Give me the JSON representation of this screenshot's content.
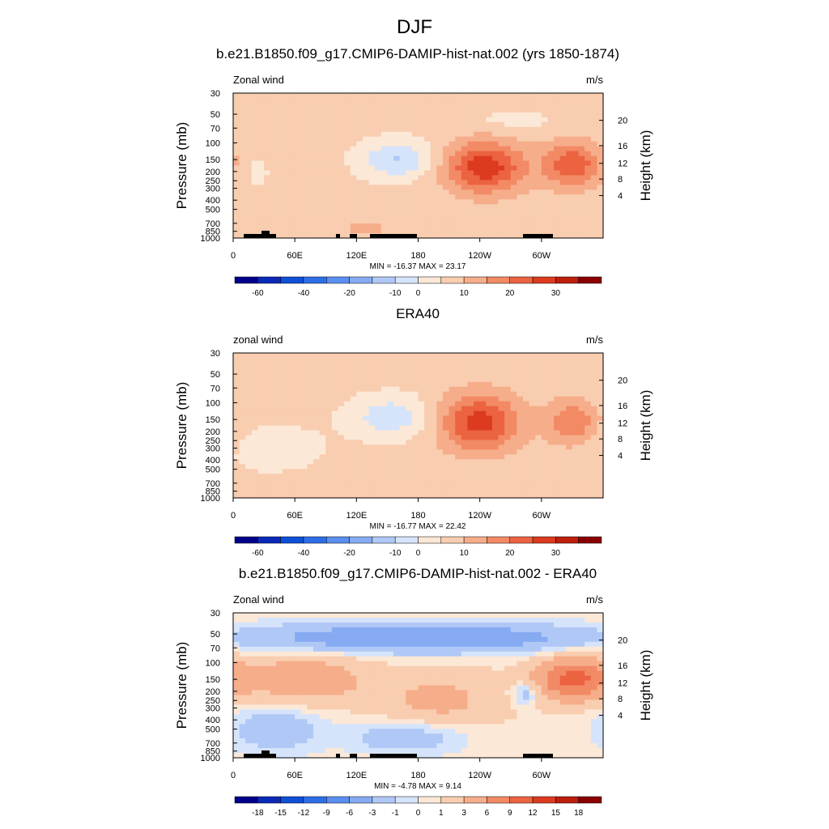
{
  "title": "DJF",
  "colors": {
    "neg12": [
      "#00008b",
      "#0a29b8",
      "#0f4fd8",
      "#2d6ee8",
      "#5a8fef",
      "#86abf2",
      "#b0c8f6",
      "#d6e4fb"
    ],
    "pos12": [
      "#fce8d6",
      "#f9cdb0",
      "#f6ad8a",
      "#f28a65",
      "#ec6341",
      "#dc3b1f",
      "#bc1f0c",
      "#8b0000"
    ]
  },
  "chart_data": [
    {
      "type": "heatmap",
      "panel_title": "b.e21.B1850.f09_g17.CMIP6-DAMIP-hist-nat.002 (yrs 1850-1874)",
      "left_string": "Zonal wind",
      "right_string": "m/s",
      "ylabel": "Pressure (mb)",
      "ylabel_right": "Height (km)",
      "xticks": [
        "0",
        "60E",
        "120E",
        "180",
        "120W",
        "60W"
      ],
      "yticks": [
        "30",
        "50",
        "70",
        "100",
        "150",
        "200",
        "250",
        "300",
        "400",
        "500",
        "700",
        "850",
        "1000"
      ],
      "yticks_right": [
        "20",
        "16",
        "12",
        "8",
        "4"
      ],
      "stats": "MIN = -16.37  MAX =  23.17",
      "colorbar_labels": [
        "-60",
        "-40",
        "-20",
        "-10",
        "0",
        "10",
        "20",
        "30"
      ],
      "fields": [
        {
          "lon": 160,
          "p": 150,
          "amp": -12,
          "wl": 25,
          "wp": 0.32
        },
        {
          "lon": 245,
          "p": 180,
          "amp": 22,
          "wl": 28,
          "wp": 0.45
        },
        {
          "lon": 330,
          "p": 170,
          "amp": 18,
          "wl": 20,
          "wp": 0.4
        },
        {
          "lon": 130,
          "p": 800,
          "amp": 4,
          "wl": 30,
          "wp": 0.25
        },
        {
          "lon": 20,
          "p": 200,
          "amp": -3,
          "wl": 12,
          "wp": 0.3
        },
        {
          "lon": 270,
          "p": 60,
          "amp": -3,
          "wl": 40,
          "wp": 0.2
        }
      ]
    },
    {
      "type": "heatmap",
      "panel_title": "ERA40",
      "left_string": "zonal wind",
      "right_string": "m/s",
      "ylabel": "Pressure (mb)",
      "ylabel_right": "Height (km)",
      "xticks": [
        "0",
        "60E",
        "120E",
        "180",
        "120W",
        "60W"
      ],
      "yticks": [
        "30",
        "50",
        "70",
        "100",
        "150",
        "200",
        "250",
        "300",
        "400",
        "500",
        "700",
        "850",
        "1000"
      ],
      "yticks_right": [
        "20",
        "16",
        "12",
        "8",
        "4"
      ],
      "stats": "MIN = -16.77  MAX =  22.42",
      "colorbar_labels": [
        "-60",
        "-40",
        "-20",
        "-10",
        "0",
        "10",
        "20",
        "30"
      ],
      "fields": [
        {
          "lon": 155,
          "p": 140,
          "amp": -10,
          "wl": 28,
          "wp": 0.35
        },
        {
          "lon": 240,
          "p": 160,
          "amp": 21,
          "wl": 28,
          "wp": 0.5
        },
        {
          "lon": 330,
          "p": 160,
          "amp": 13,
          "wl": 18,
          "wp": 0.4
        },
        {
          "lon": 40,
          "p": 300,
          "amp": -3,
          "wl": 40,
          "wp": 0.5
        },
        {
          "lon": 110,
          "p": 800,
          "amp": 3,
          "wl": 30,
          "wp": 0.2
        }
      ]
    },
    {
      "type": "heatmap",
      "panel_title": "b.e21.B1850.f09_g17.CMIP6-DAMIP-hist-nat.002 - ERA40",
      "left_string": "Zonal wind",
      "right_string": "m/s",
      "ylabel": "Pressure (mb)",
      "ylabel_right": "Height (km)",
      "xticks": [
        "0",
        "60E",
        "120E",
        "180",
        "120W",
        "60W"
      ],
      "yticks": [
        "30",
        "50",
        "70",
        "100",
        "150",
        "200",
        "250",
        "300",
        "400",
        "500",
        "700",
        "850",
        "1000"
      ],
      "yticks_right": [
        "20",
        "16",
        "12",
        "8",
        "4"
      ],
      "stats": "MIN =  -4.78  MAX =   9.14",
      "colorbar_labels": [
        "-18",
        "-15",
        "-12",
        "-9",
        "-6",
        "-3",
        "-1",
        "0",
        "1",
        "3",
        "6",
        "9",
        "12",
        "15",
        "18"
      ],
      "fields": [
        {
          "lon": 180,
          "p": 55,
          "amp": -4,
          "wl": 120,
          "wp": 0.25
        },
        {
          "lon": 70,
          "p": 150,
          "amp": 3,
          "wl": 40,
          "wp": 0.4
        },
        {
          "lon": 330,
          "p": 150,
          "amp": 6,
          "wl": 25,
          "wp": 0.35
        },
        {
          "lon": 200,
          "p": 250,
          "amp": 2,
          "wl": 40,
          "wp": 0.5
        },
        {
          "lon": 285,
          "p": 210,
          "amp": -2,
          "wl": 10,
          "wp": 0.2
        },
        {
          "lon": 40,
          "p": 500,
          "amp": -2,
          "wl": 30,
          "wp": 0.4
        },
        {
          "lon": 170,
          "p": 600,
          "amp": -2,
          "wl": 40,
          "wp": 0.3
        }
      ]
    }
  ]
}
